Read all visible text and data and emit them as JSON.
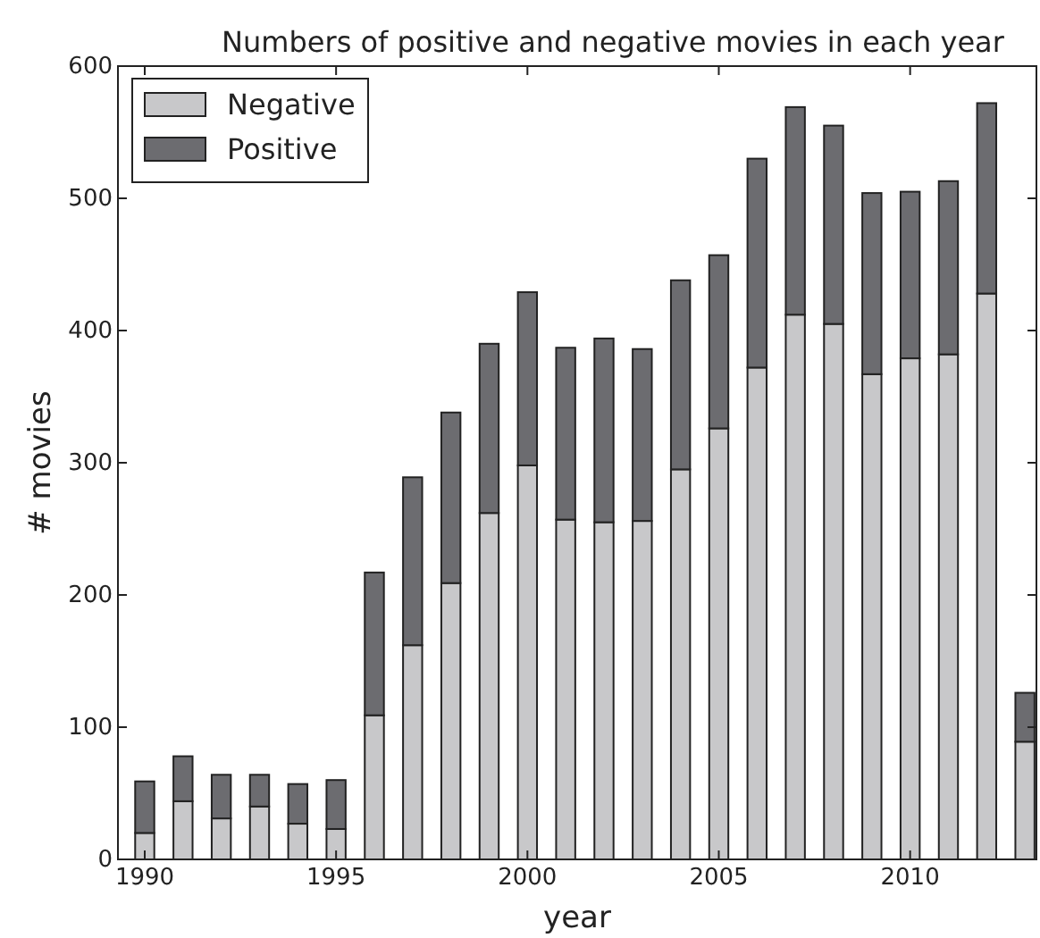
{
  "chart_data": {
    "type": "bar",
    "title": "Numbers of positive and negative movies in each year",
    "xlabel": "year",
    "ylabel": "# movies",
    "x": [
      1990,
      1991,
      1992,
      1993,
      1994,
      1995,
      1996,
      1997,
      1998,
      1999,
      2000,
      2001,
      2002,
      2003,
      2004,
      2005,
      2006,
      2007,
      2008,
      2009,
      2010,
      2011,
      2012,
      2013
    ],
    "series": [
      {
        "name": "Negative",
        "color": "#c8c8ca",
        "values": [
          20,
          44,
          31,
          40,
          27,
          23,
          109,
          162,
          209,
          262,
          298,
          257,
          255,
          256,
          295,
          326,
          372,
          412,
          405,
          367,
          379,
          382,
          428,
          89
        ]
      },
      {
        "name": "Positive",
        "color": "#6c6c70",
        "values": [
          39,
          34,
          33,
          24,
          30,
          37,
          108,
          127,
          129,
          128,
          131,
          130,
          139,
          130,
          143,
          131,
          158,
          157,
          150,
          137,
          126,
          131,
          144,
          37
        ]
      }
    ],
    "stacked": true,
    "xlim": [
      1989.3,
      2013.3
    ],
    "xticks": [
      1990,
      1995,
      2000,
      2005,
      2010
    ],
    "ylim": [
      0,
      600
    ],
    "yticks": [
      0,
      100,
      200,
      300,
      400,
      500,
      600
    ],
    "grid": false,
    "legend": "top left"
  }
}
